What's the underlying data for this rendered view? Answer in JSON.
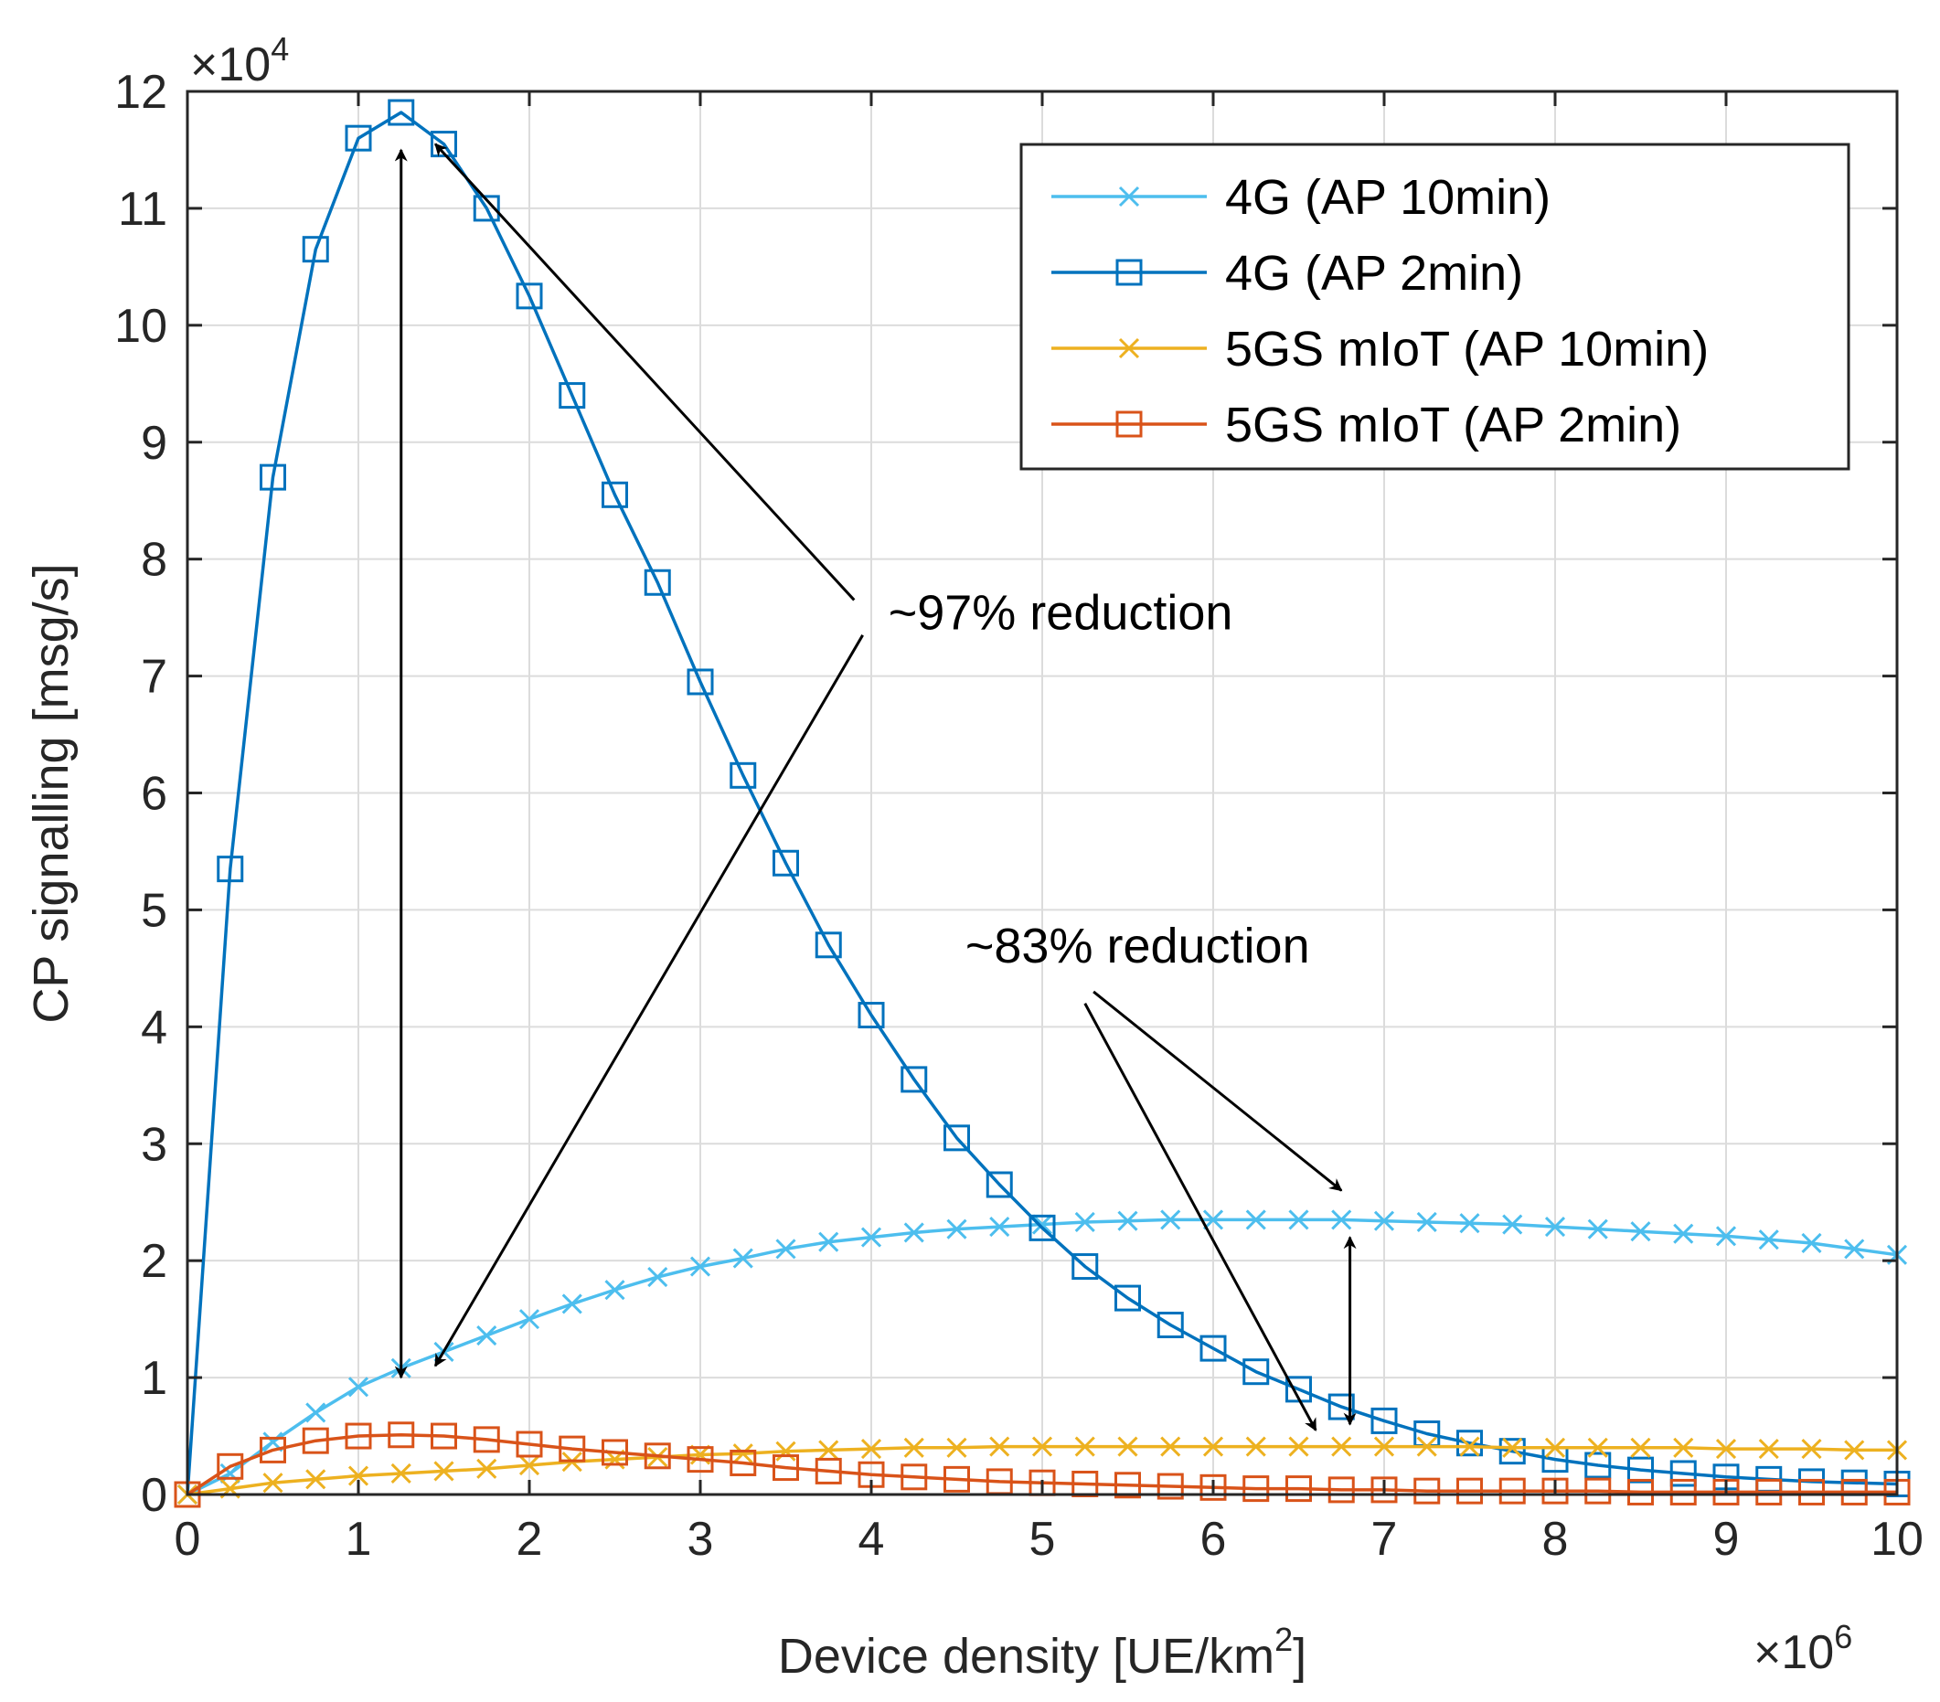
{
  "chart_data": {
    "type": "line",
    "xlabel": "Device density [UE/km",
    "xlabel_sup": "2",
    "xlabel_tail": "]",
    "ylabel": "CP signalling [msg/s]",
    "x_exponent": {
      "base": "×10",
      "power": "6"
    },
    "y_exponent": {
      "base": "×10",
      "power": "4"
    },
    "xlim": [
      0,
      10
    ],
    "ylim": [
      0,
      12
    ],
    "xticks": [
      0,
      1,
      2,
      3,
      4,
      5,
      6,
      7,
      8,
      9,
      10
    ],
    "yticks": [
      0,
      1,
      2,
      3,
      4,
      5,
      6,
      7,
      8,
      9,
      10,
      11,
      12
    ],
    "grid": true,
    "legend_position": "top-right",
    "x": [
      0,
      0.25,
      0.5,
      0.75,
      1.0,
      1.25,
      1.5,
      1.75,
      2.0,
      2.25,
      2.5,
      2.75,
      3.0,
      3.25,
      3.5,
      3.75,
      4.0,
      4.25,
      4.5,
      4.75,
      5.0,
      5.25,
      5.5,
      5.75,
      6.0,
      6.25,
      6.5,
      6.75,
      7.0,
      7.25,
      7.5,
      7.75,
      8.0,
      8.25,
      8.5,
      8.75,
      9.0,
      9.25,
      9.5,
      9.75,
      10.0
    ],
    "series": [
      {
        "name": "4G (AP 10min)",
        "color": "#4DBEEE",
        "marker": "x",
        "values": [
          0,
          0.18,
          0.45,
          0.7,
          0.92,
          1.08,
          1.22,
          1.36,
          1.5,
          1.63,
          1.75,
          1.86,
          1.95,
          2.02,
          2.1,
          2.16,
          2.2,
          2.24,
          2.27,
          2.29,
          2.31,
          2.33,
          2.34,
          2.35,
          2.35,
          2.35,
          2.35,
          2.35,
          2.34,
          2.33,
          2.32,
          2.31,
          2.29,
          2.27,
          2.25,
          2.23,
          2.21,
          2.18,
          2.15,
          2.1,
          2.05
        ]
      },
      {
        "name": "4G (AP 2min)",
        "color": "#0072BD",
        "marker": "square",
        "values": [
          0,
          5.35,
          8.7,
          10.65,
          11.6,
          11.82,
          11.55,
          11.0,
          10.25,
          9.4,
          8.55,
          7.8,
          6.95,
          6.15,
          5.4,
          4.7,
          4.1,
          3.55,
          3.05,
          2.65,
          2.28,
          1.95,
          1.68,
          1.45,
          1.25,
          1.05,
          0.9,
          0.75,
          0.63,
          0.52,
          0.44,
          0.37,
          0.3,
          0.25,
          0.21,
          0.18,
          0.15,
          0.13,
          0.11,
          0.1,
          0.09
        ]
      },
      {
        "name": "5GS mIoT (AP 10min)",
        "color": "#EDB120",
        "marker": "x",
        "values": [
          0,
          0.05,
          0.1,
          0.13,
          0.16,
          0.18,
          0.2,
          0.22,
          0.25,
          0.28,
          0.3,
          0.32,
          0.34,
          0.35,
          0.37,
          0.38,
          0.39,
          0.4,
          0.4,
          0.41,
          0.41,
          0.41,
          0.41,
          0.41,
          0.41,
          0.41,
          0.41,
          0.41,
          0.41,
          0.41,
          0.41,
          0.4,
          0.4,
          0.4,
          0.4,
          0.4,
          0.39,
          0.39,
          0.39,
          0.38,
          0.38
        ]
      },
      {
        "name": "5GS mIoT (AP 2min)",
        "color": "#D95319",
        "marker": "square",
        "values": [
          0,
          0.24,
          0.38,
          0.46,
          0.5,
          0.51,
          0.5,
          0.47,
          0.43,
          0.39,
          0.36,
          0.33,
          0.3,
          0.27,
          0.23,
          0.2,
          0.17,
          0.15,
          0.13,
          0.11,
          0.1,
          0.09,
          0.08,
          0.07,
          0.06,
          0.05,
          0.05,
          0.04,
          0.04,
          0.03,
          0.03,
          0.03,
          0.03,
          0.03,
          0.02,
          0.02,
          0.02,
          0.02,
          0.02,
          0.02,
          0.02
        ]
      }
    ],
    "annotations": [
      {
        "text": "~97% reduction",
        "text_at": [
          4.1,
          7.4
        ],
        "tail_a": [
          3.9,
          7.65
        ],
        "head_a": [
          1.45,
          11.55
        ],
        "tail_b": [
          3.95,
          7.35
        ],
        "head_b": [
          1.45,
          1.1
        ],
        "double_at_x": 1.25,
        "double_from": 1.0,
        "double_to": 11.5
      },
      {
        "text": "~83% reduction",
        "text_at": [
          4.55,
          4.55
        ],
        "tail_a": [
          5.3,
          4.3
        ],
        "head_a": [
          6.75,
          2.6
        ],
        "tail_b": [
          5.25,
          4.2
        ],
        "head_b": [
          6.6,
          0.55
        ],
        "double_at_x": 6.8,
        "double_from": 0.6,
        "double_to": 2.2
      }
    ]
  }
}
